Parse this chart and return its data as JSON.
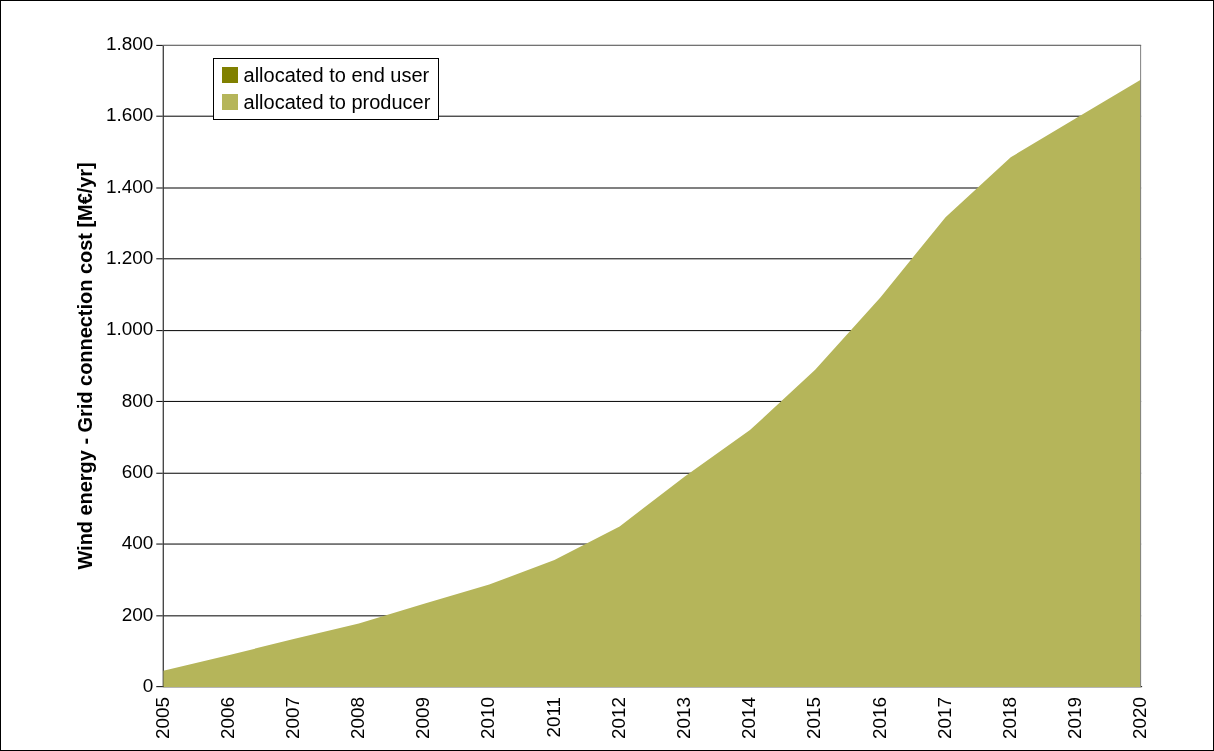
{
  "chart_data": {
    "type": "area",
    "ylabel": "Wind energy - Grid connection cost [M€/yr]",
    "categories": [
      "2005",
      "2006",
      "2007",
      "2008",
      "2009",
      "2010",
      "2011",
      "2012",
      "2013",
      "2014",
      "2015",
      "2016",
      "2017",
      "2018",
      "2019",
      "2020"
    ],
    "series": [
      {
        "name": "allocated to end user",
        "color": "#808000",
        "values": [
          null,
          null,
          null,
          null,
          null,
          null,
          null,
          null,
          null,
          null,
          null,
          null,
          null,
          null,
          null,
          null
        ]
      },
      {
        "name": "allocated to producer",
        "color": "#b5b55a",
        "values": [
          45,
          89,
          134,
          178,
          233,
          287,
          356,
          450,
          590,
          720,
          889,
          1092,
          1317,
          1485,
          1594,
          1703
        ]
      }
    ],
    "ylim": [
      0,
      1800
    ],
    "yticks": [
      0,
      {
        "value": 200,
        "label": "200"
      },
      {
        "value": 400,
        "label": "400"
      },
      {
        "value": 600,
        "label": "600"
      },
      {
        "value": 800,
        "label": "800"
      },
      {
        "value": 1000,
        "label": "1.000"
      },
      {
        "value": 1200,
        "label": "1.200"
      },
      {
        "value": 1400,
        "label": "1.400"
      },
      {
        "value": 1600,
        "label": "1.600"
      },
      {
        "value": 1800,
        "label": "1.800"
      }
    ],
    "grid": "y",
    "legend": "top left"
  }
}
